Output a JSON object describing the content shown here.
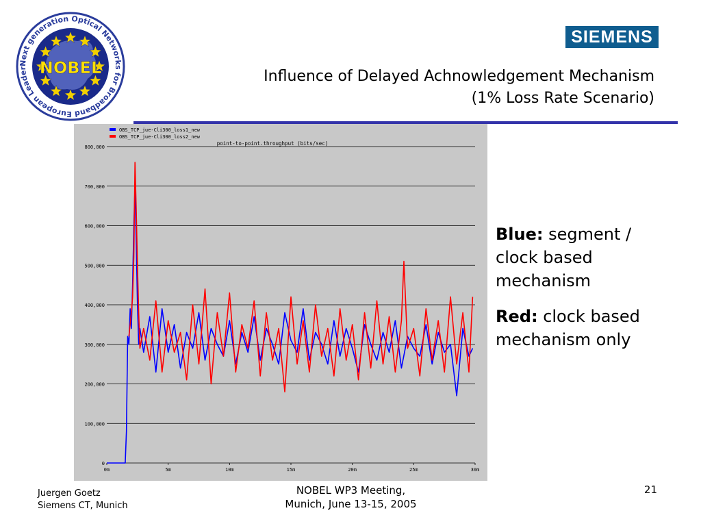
{
  "logo": {
    "name": "NOBEL",
    "ring_text": "Next generation Optical Networks for Broadband European Leadership",
    "colors": {
      "ring": "#2a3c9c",
      "center": "#1a2a8a",
      "stars": "#f2d000",
      "name": "#ffe000"
    }
  },
  "brand": {
    "text": "SIEMENS",
    "color": "#0f5d8f"
  },
  "slide": {
    "title_line1": "Influence of Delayed Achnowledgement Mechanism",
    "title_line2": "(1% Loss Rate Scenario)",
    "rule_color": "#3333aa"
  },
  "legend_text": {
    "blue_label": "Blue:",
    "blue_desc": "segment / clock based mechanism",
    "red_label": "Red:",
    "red_desc": "clock based mechanism only"
  },
  "footer": {
    "author": "Juergen Goetz",
    "affiliation": "Siemens CT, Munich",
    "meeting_line1": "NOBEL WP3 Meeting,",
    "meeting_line2": "Munich, June 13-15, 2005",
    "page_number": "21"
  },
  "chart_data": {
    "type": "line",
    "title": "point-to-point.throughput (bits/sec)",
    "xlabel": "",
    "ylabel": "",
    "xlim": [
      0,
      30
    ],
    "ylim": [
      0,
      800000
    ],
    "x_ticks": [
      "0m",
      "5m",
      "10m",
      "15m",
      "20m",
      "25m",
      "30m"
    ],
    "y_ticks": [
      "0",
      "100,000",
      "200,000",
      "300,000",
      "400,000",
      "500,000",
      "600,000",
      "700,000",
      "800,000"
    ],
    "grid": true,
    "legend_position": "top-left",
    "series": [
      {
        "name": "OBS_TCP_jue-Cli300_loss1_new",
        "color": "#0000ff",
        "x": [
          0,
          1.5,
          1.6,
          1.65,
          1.7,
          1.8,
          1.9,
          2.0,
          2.1,
          2.2,
          2.3,
          2.4,
          2.5,
          2.6,
          2.7,
          3.0,
          3.5,
          4.0,
          4.5,
          5.0,
          5.5,
          6.0,
          6.5,
          7.0,
          7.5,
          8.0,
          8.5,
          9.0,
          9.5,
          10.0,
          10.5,
          11.0,
          11.5,
          12.0,
          12.5,
          13.0,
          13.5,
          14.0,
          14.5,
          15.0,
          15.5,
          16.0,
          16.5,
          17.0,
          17.5,
          18.0,
          18.5,
          19.0,
          19.5,
          20.0,
          20.5,
          21.0,
          21.5,
          22.0,
          22.5,
          23.0,
          23.5,
          24.0,
          24.5,
          25.0,
          25.5,
          26.0,
          26.5,
          27.0,
          27.5,
          28.0,
          28.5,
          29.0,
          29.5,
          29.8
        ],
        "values": [
          0,
          0,
          80000,
          200000,
          320000,
          300000,
          390000,
          340000,
          450000,
          600000,
          700000,
          560000,
          400000,
          300000,
          340000,
          280000,
          370000,
          230000,
          390000,
          280000,
          350000,
          240000,
          330000,
          290000,
          380000,
          260000,
          340000,
          300000,
          270000,
          360000,
          250000,
          330000,
          280000,
          370000,
          260000,
          340000,
          300000,
          250000,
          380000,
          310000,
          280000,
          390000,
          260000,
          330000,
          300000,
          250000,
          360000,
          270000,
          340000,
          290000,
          230000,
          350000,
          300000,
          260000,
          330000,
          280000,
          360000,
          240000,
          320000,
          290000,
          270000,
          350000,
          250000,
          330000,
          280000,
          300000,
          170000,
          340000,
          270000,
          290000
        ]
      },
      {
        "name": "OBS_TCP_jue-Cli300_loss2_new",
        "color": "#ff0000",
        "x": [
          1.8,
          1.9,
          2.0,
          2.1,
          2.2,
          2.3,
          2.4,
          2.5,
          2.6,
          2.7,
          3.0,
          3.5,
          4.0,
          4.5,
          5.0,
          5.5,
          6.0,
          6.5,
          7.0,
          7.5,
          8.0,
          8.5,
          9.0,
          9.5,
          10.0,
          10.5,
          11.0,
          11.5,
          12.0,
          12.5,
          13.0,
          13.5,
          14.0,
          14.5,
          15.0,
          15.5,
          16.0,
          16.5,
          17.0,
          17.5,
          18.0,
          18.5,
          19.0,
          19.5,
          20.0,
          20.5,
          21.0,
          21.5,
          22.0,
          22.5,
          23.0,
          23.5,
          24.0,
          24.2,
          24.5,
          25.0,
          25.5,
          26.0,
          26.5,
          27.0,
          27.5,
          28.0,
          28.5,
          29.0,
          29.5,
          29.8
        ],
        "values": [
          320000,
          350000,
          380000,
          420000,
          520000,
          760000,
          640000,
          500000,
          380000,
          290000,
          340000,
          260000,
          410000,
          230000,
          360000,
          280000,
          330000,
          210000,
          400000,
          250000,
          440000,
          200000,
          380000,
          270000,
          430000,
          230000,
          350000,
          290000,
          410000,
          220000,
          380000,
          260000,
          340000,
          180000,
          420000,
          250000,
          360000,
          230000,
          400000,
          270000,
          340000,
          220000,
          390000,
          260000,
          350000,
          210000,
          380000,
          240000,
          410000,
          250000,
          370000,
          230000,
          360000,
          510000,
          290000,
          340000,
          220000,
          390000,
          260000,
          360000,
          230000,
          420000,
          250000,
          380000,
          230000,
          420000
        ]
      }
    ]
  }
}
